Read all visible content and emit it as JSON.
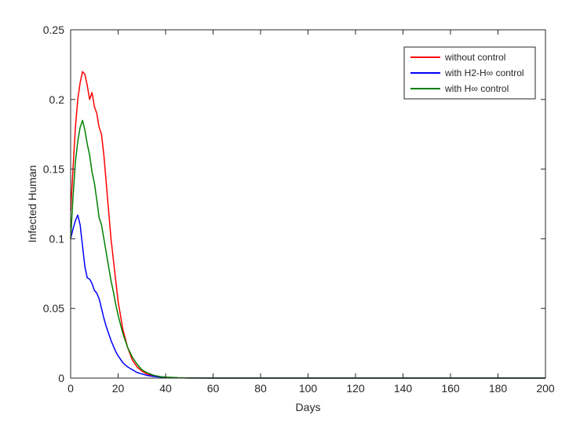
{
  "chart_data": {
    "type": "line",
    "title": "",
    "xlabel": "Days",
    "ylabel": "Infected Human",
    "xlim": [
      0,
      200
    ],
    "ylim": [
      0,
      0.25
    ],
    "x_ticks": [
      0,
      20,
      40,
      60,
      80,
      100,
      120,
      140,
      160,
      180,
      200
    ],
    "y_ticks": [
      0,
      0.05,
      0.1,
      0.15,
      0.2,
      0.25
    ],
    "grid": false,
    "legend_position": "top-right",
    "series": [
      {
        "name": "without control",
        "color": "#ff0000",
        "x": [
          0,
          1,
          2,
          3,
          4,
          5,
          6,
          7,
          8,
          9,
          10,
          11,
          12,
          13,
          14,
          15,
          16,
          17,
          18,
          19,
          20,
          22,
          24,
          26,
          28,
          30,
          32,
          35,
          38,
          40,
          45,
          50,
          60,
          80,
          100,
          120,
          140,
          160,
          180,
          200
        ],
        "values": [
          0.12,
          0.15,
          0.18,
          0.2,
          0.212,
          0.22,
          0.218,
          0.21,
          0.2,
          0.205,
          0.195,
          0.19,
          0.18,
          0.175,
          0.16,
          0.14,
          0.12,
          0.1,
          0.085,
          0.07,
          0.055,
          0.035,
          0.022,
          0.013,
          0.008,
          0.005,
          0.003,
          0.0015,
          0.0008,
          0.0005,
          0.0002,
          0.0001,
          0,
          0,
          0,
          0,
          0,
          0,
          0,
          0
        ]
      },
      {
        "name": "with H2-H∞ control",
        "color": "#0000ff",
        "x": [
          0,
          1,
          2,
          3,
          4,
          5,
          6,
          7,
          8,
          9,
          10,
          11,
          12,
          13,
          14,
          15,
          16,
          17,
          18,
          19,
          20,
          22,
          24,
          26,
          28,
          30,
          32,
          35,
          38,
          40,
          45,
          50,
          60,
          80,
          100,
          120,
          140,
          160,
          180,
          200
        ],
        "values": [
          0.1,
          0.107,
          0.113,
          0.117,
          0.11,
          0.095,
          0.08,
          0.072,
          0.071,
          0.068,
          0.063,
          0.061,
          0.057,
          0.05,
          0.043,
          0.037,
          0.032,
          0.027,
          0.023,
          0.019,
          0.016,
          0.011,
          0.008,
          0.006,
          0.004,
          0.003,
          0.002,
          0.0012,
          0.0007,
          0.0005,
          0.0002,
          0.0001,
          0,
          0,
          0,
          0,
          0,
          0,
          0,
          0
        ]
      },
      {
        "name": "with H∞ control",
        "color": "#008000",
        "x": [
          0,
          1,
          2,
          3,
          4,
          5,
          6,
          7,
          8,
          9,
          10,
          11,
          12,
          13,
          14,
          15,
          16,
          17,
          18,
          19,
          20,
          22,
          24,
          26,
          28,
          30,
          32,
          35,
          38,
          40,
          45,
          50,
          60,
          80,
          100,
          120,
          140,
          160,
          180,
          200
        ],
        "values": [
          0.1,
          0.13,
          0.155,
          0.17,
          0.18,
          0.185,
          0.178,
          0.168,
          0.16,
          0.148,
          0.14,
          0.128,
          0.115,
          0.11,
          0.1,
          0.09,
          0.08,
          0.07,
          0.062,
          0.053,
          0.045,
          0.032,
          0.022,
          0.015,
          0.01,
          0.006,
          0.004,
          0.002,
          0.001,
          0.0007,
          0.0003,
          0.0001,
          0,
          0,
          0,
          0,
          0,
          0,
          0,
          0
        ]
      }
    ]
  }
}
